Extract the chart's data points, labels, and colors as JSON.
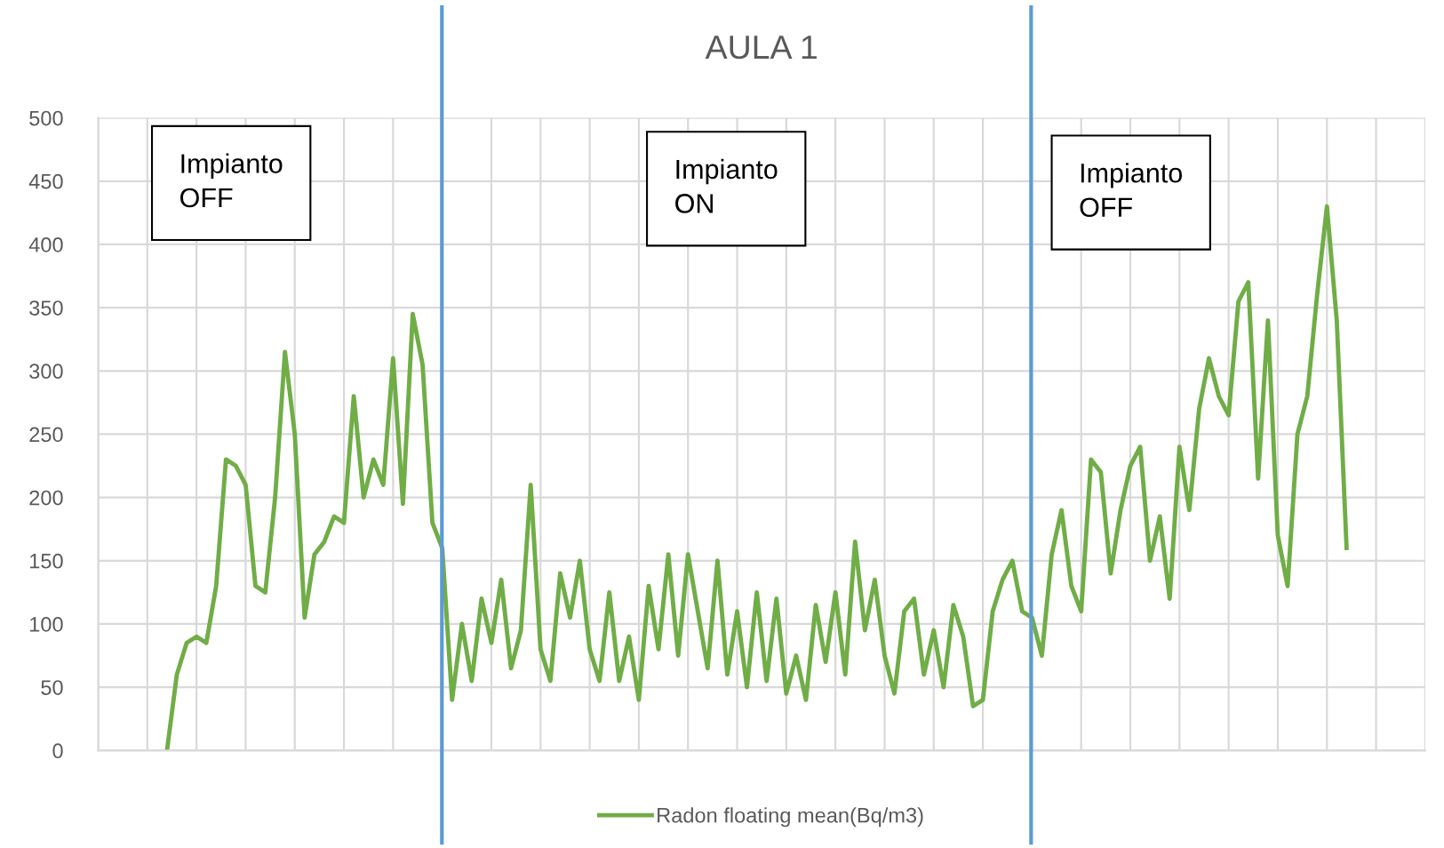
{
  "chart_data": {
    "type": "line",
    "title": "AULA 1",
    "categories": [
      null,
      null,
      null,
      null,
      null,
      null,
      null,
      null,
      null,
      null,
      null,
      null,
      null,
      null,
      null,
      null,
      null,
      null,
      null,
      null,
      null,
      null,
      null,
      null,
      null,
      null,
      null,
      null,
      null,
      null,
      null,
      null,
      null,
      null,
      null,
      null,
      null,
      null,
      null,
      null,
      null,
      null,
      null,
      null,
      null,
      null,
      null,
      null,
      null,
      null,
      null,
      null,
      null,
      null,
      null,
      null,
      null,
      null,
      null,
      null,
      null,
      null,
      null,
      null,
      null,
      null,
      null,
      null,
      null,
      null,
      null,
      null,
      null,
      null,
      null,
      null,
      null,
      null,
      null,
      null,
      null,
      null,
      null,
      null,
      null,
      null,
      null,
      null,
      null,
      null,
      null,
      null,
      null,
      null,
      null,
      null,
      null,
      null,
      null,
      null,
      null,
      null,
      null,
      null,
      null,
      null,
      null,
      null,
      null,
      null,
      null,
      null,
      null,
      null,
      null,
      null,
      null,
      null,
      null,
      null,
      null
    ],
    "ylim": [
      0,
      500
    ],
    "yticks": [
      0,
      50,
      100,
      150,
      200,
      250,
      300,
      350,
      400,
      450,
      500
    ],
    "grid": true,
    "legend": "bottom",
    "marker": "none",
    "line_style": "solid",
    "series": [
      {
        "name": "Radon floating mean(Bq/m3)",
        "color": "#70ad47",
        "values": [
          0,
          60,
          85,
          90,
          85,
          130,
          230,
          225,
          210,
          130,
          125,
          200,
          315,
          250,
          105,
          155,
          165,
          185,
          180,
          280,
          200,
          230,
          210,
          310,
          195,
          345,
          305,
          180,
          160,
          40,
          100,
          55,
          120,
          85,
          135,
          65,
          95,
          210,
          80,
          55,
          140,
          105,
          150,
          80,
          55,
          125,
          55,
          90,
          40,
          130,
          80,
          155,
          75,
          155,
          110,
          65,
          150,
          60,
          110,
          50,
          125,
          55,
          120,
          45,
          75,
          40,
          115,
          70,
          125,
          60,
          165,
          95,
          135,
          75,
          45,
          110,
          120,
          60,
          95,
          50,
          115,
          90,
          35,
          40,
          110,
          135,
          150,
          110,
          105,
          75,
          155,
          190,
          130,
          110,
          230,
          220,
          140,
          190,
          225,
          240,
          150,
          185,
          120,
          240,
          190,
          270,
          310,
          280,
          265,
          355,
          370,
          215,
          340,
          170,
          130,
          250,
          280,
          360,
          430,
          340,
          160
        ]
      }
    ],
    "annotations": [
      "Impianto\nOFF",
      "Impianto\nON",
      "Impianto\nOFF"
    ]
  }
}
